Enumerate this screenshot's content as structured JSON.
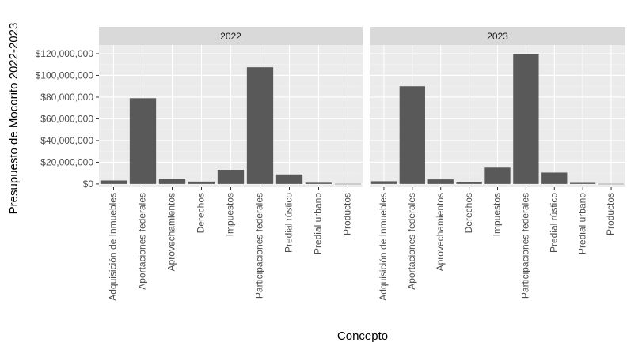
{
  "chart_data": {
    "type": "bar",
    "ylabel": "Presupuesto de Mocorito 2022-2023",
    "xlabel": "Concepto",
    "categories": [
      "Adquisición de Inmuebles",
      "Aportaciones federales",
      "Aprovechamientos",
      "Derechos",
      "Impuestos",
      "Participaciones federales",
      "Predial rústico",
      "Predial urbano",
      "Productos"
    ],
    "y_ticks": [
      0,
      20000000,
      40000000,
      60000000,
      80000000,
      100000000,
      120000000
    ],
    "y_tick_labels": [
      "$0",
      "$20,000,000",
      "$40,000,000",
      "$60,000,000",
      "$80,000,000",
      "$100,000,000",
      "$120,000,000"
    ],
    "ylim": [
      -3000000,
      128000000
    ],
    "grid": true,
    "facets": [
      {
        "name": "2022",
        "values": [
          3200000,
          79000000,
          4800000,
          2200000,
          13000000,
          107500000,
          8800000,
          1100000,
          100000
        ]
      },
      {
        "name": "2023",
        "values": [
          2500000,
          90000000,
          4200000,
          2000000,
          15000000,
          120000000,
          10500000,
          1000000,
          100000
        ]
      }
    ],
    "colors": {
      "bar": "#595959",
      "panel": "#ebebeb",
      "strip": "#d9d9d9",
      "grid_major": "#ffffff",
      "grid_minor": "#f2f2f2",
      "tick_text": "#4d4d4d"
    }
  }
}
